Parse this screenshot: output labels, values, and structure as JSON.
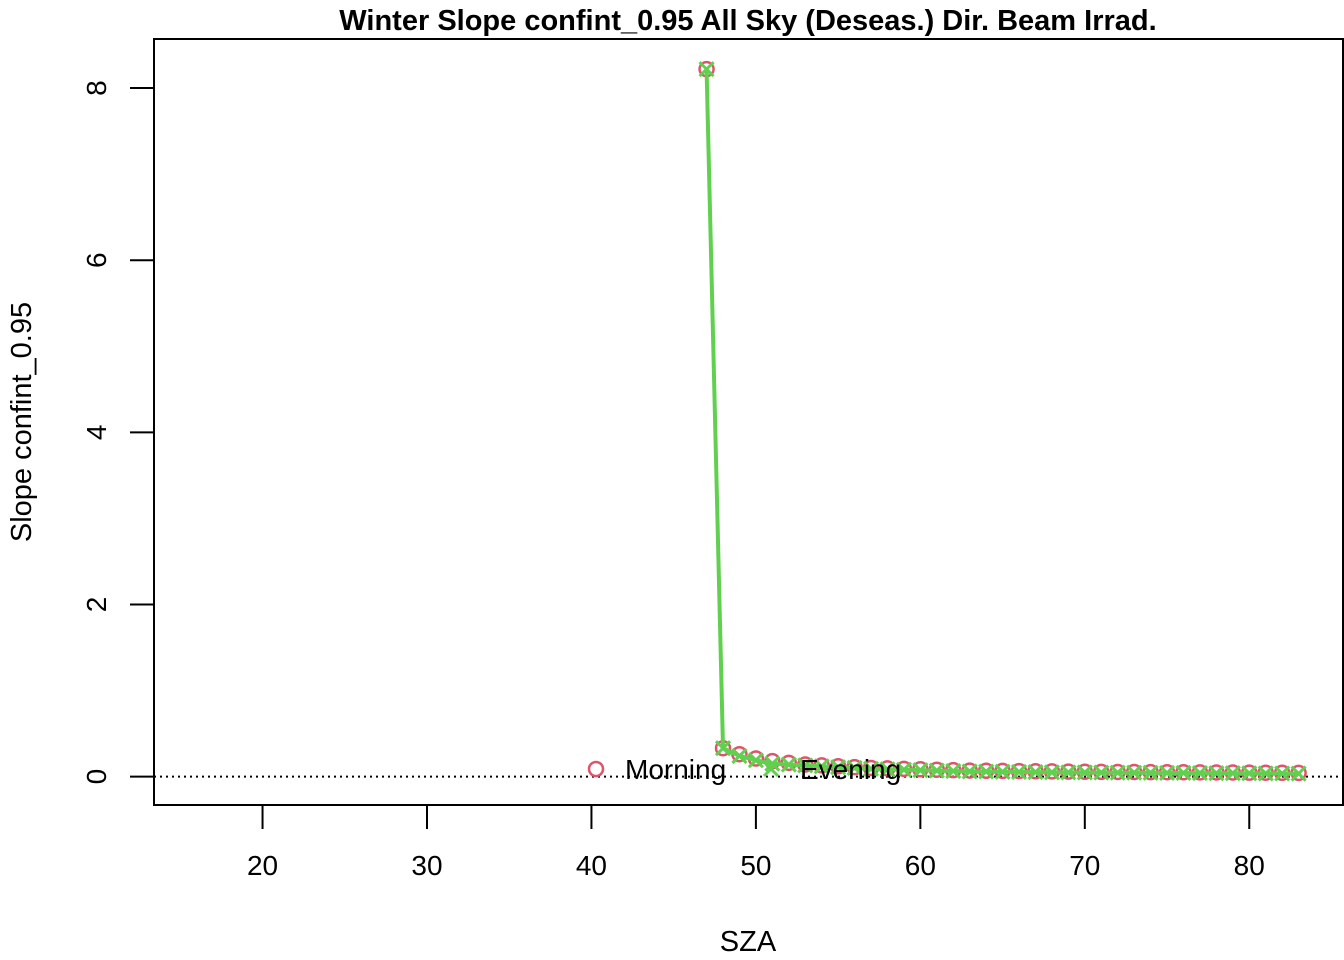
{
  "chart_data": {
    "type": "scatter",
    "title": "Winter Slope confint_0.95 All Sky (Deseas.) Dir. Beam Irrad.",
    "xlabel": "SZA",
    "ylabel": "Slope confint_0.95",
    "xlim": [
      13.4,
      85.7
    ],
    "ylim": [
      -0.33,
      8.57
    ],
    "xticks": [
      20,
      30,
      40,
      50,
      60,
      70,
      80
    ],
    "yticks": [
      0,
      2,
      4,
      6,
      8
    ],
    "reference_line_y": 0,
    "colors": {
      "Morning": "#df536b",
      "Evening": "#61d04f"
    },
    "legend": {
      "placement": "bottom-center",
      "entries": [
        {
          "label": "Morning",
          "marker": "circle",
          "color": "#df536b"
        },
        {
          "label": "Evening",
          "marker": "cross",
          "color": "#61d04f"
        }
      ]
    },
    "series": [
      {
        "name": "Morning",
        "marker": "circle",
        "line": false,
        "x": [
          47,
          48,
          49,
          50,
          51,
          52,
          53,
          54,
          55,
          56,
          57,
          58,
          59,
          60,
          61,
          62,
          63,
          64,
          65,
          66,
          67,
          68,
          69,
          70,
          71,
          72,
          73,
          74,
          75,
          76,
          77,
          78,
          79,
          80,
          81,
          82,
          83
        ],
        "y": [
          8.22,
          0.33,
          0.26,
          0.21,
          0.18,
          0.16,
          0.14,
          0.13,
          0.12,
          0.11,
          0.1,
          0.095,
          0.09,
          0.085,
          0.08,
          0.075,
          0.07,
          0.068,
          0.066,
          0.064,
          0.062,
          0.06,
          0.058,
          0.056,
          0.055,
          0.054,
          0.053,
          0.052,
          0.051,
          0.05,
          0.049,
          0.048,
          0.047,
          0.046,
          0.045,
          0.044,
          0.043
        ]
      },
      {
        "name": "Evening",
        "marker": "cross",
        "line": true,
        "x": [
          47,
          48,
          49,
          50,
          51,
          52,
          53,
          54,
          55,
          56,
          57,
          58,
          59,
          60,
          61,
          62,
          63,
          64,
          65,
          66,
          67,
          68,
          69,
          70,
          71,
          72,
          73,
          74,
          75,
          76,
          77,
          78,
          79,
          80,
          81,
          82,
          83
        ],
        "y": [
          8.22,
          0.33,
          0.24,
          0.19,
          0.15,
          0.14,
          0.13,
          0.12,
          0.11,
          0.1,
          0.09,
          0.085,
          0.08,
          0.075,
          0.07,
          0.065,
          0.06,
          0.058,
          0.056,
          0.054,
          0.052,
          0.05,
          0.049,
          0.048,
          0.047,
          0.046,
          0.045,
          0.044,
          0.043,
          0.042,
          0.041,
          0.04,
          0.039,
          0.038,
          0.037,
          0.036,
          0.035
        ]
      }
    ]
  }
}
